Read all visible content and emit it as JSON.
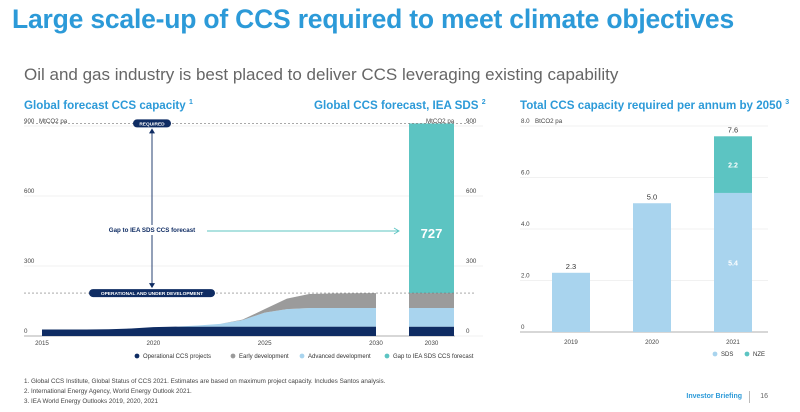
{
  "header": {
    "title": "Large scale-up of CCS required to meet climate objectives",
    "subtitle": "Oil and gas industry is best placed to deliver CCS leveraging existing capability"
  },
  "sections": {
    "left_title": "Global forecast CCS capacity",
    "left_sup": "1",
    "mid_title": "Global CCS forecast, IEA SDS",
    "mid_sup": "2",
    "right_title": "Total CCS capacity required per annum by 2050",
    "right_sup": "3"
  },
  "chart_data": [
    {
      "type": "area",
      "unit_label": "MtCO2 pa",
      "ylim": [
        0,
        900
      ],
      "y_ticks": [
        "0",
        "300",
        "600",
        "900"
      ],
      "x_ticks": [
        "2015",
        "2020",
        "2025",
        "2030"
      ],
      "x": [
        2015,
        2016,
        2017,
        2018,
        2019,
        2020,
        2021,
        2022,
        2023,
        2024,
        2025,
        2026,
        2027,
        2028,
        2029,
        2030
      ],
      "series": [
        {
          "name": "Operational CCS projects",
          "color": "#0f2c63",
          "values": [
            28,
            28,
            28,
            29,
            32,
            38,
            40,
            40,
            40,
            40,
            40,
            40,
            40,
            40,
            40,
            40
          ]
        },
        {
          "name": "Advanced development",
          "color": "#a9d4ee",
          "values": [
            0,
            0,
            0,
            0,
            0,
            0,
            0,
            5,
            12,
            28,
            60,
            75,
            80,
            80,
            80,
            80
          ]
        },
        {
          "name": "Early development",
          "color": "#9b9b9b",
          "values": [
            0,
            0,
            0,
            0,
            0,
            0,
            0,
            0,
            0,
            2,
            15,
            45,
            60,
            62,
            63,
            64
          ]
        }
      ],
      "bar_2030": {
        "label": "2030",
        "operational": 40,
        "advanced": 80,
        "early": 64,
        "gap": 727,
        "total": 911,
        "gap_label": "727",
        "gap_color": "#5cc4c2"
      },
      "annotations": {
        "required": "REQUIRED",
        "operational": "OPERATIONAL AND UNDER DEVELOPMENT",
        "gap": "Gap to IEA SDS CCS forecast"
      },
      "legend": [
        "Operational CCS projects",
        "Early development",
        "Advanced development",
        "Gap to IEA SDS CCS forecast"
      ]
    },
    {
      "type": "bar",
      "unit_label": "BtCO2 pa",
      "ylim": [
        0,
        8
      ],
      "y_ticks": [
        "0",
        "2.0",
        "4.0",
        "6.0",
        "8.0"
      ],
      "categories": [
        "2019",
        "2020",
        "2021"
      ],
      "series": [
        {
          "name": "SDS",
          "color": "#a9d4ee",
          "values": [
            2.3,
            5.0,
            5.4
          ]
        },
        {
          "name": "NZE",
          "color": "#5cc4c2",
          "values": [
            0,
            0,
            2.2
          ]
        }
      ],
      "totals": [
        "2.3",
        "5.0",
        "7.6"
      ],
      "inner_labels": {
        "sds_2021": "5.4",
        "nze_2021": "2.2"
      }
    }
  ],
  "footnotes": [
    "1.  Global CCS Institute, Global Status of CCS 2021. Estimates are based on maximum project capacity. Includes Santos analysis.",
    "2.  International Energy Agency, World Energy Outlook 2021.",
    "3.  IEA World Energy Outlooks 2019, 2020, 2021"
  ],
  "footer": {
    "brand": "Investor Briefing",
    "page": "16"
  }
}
